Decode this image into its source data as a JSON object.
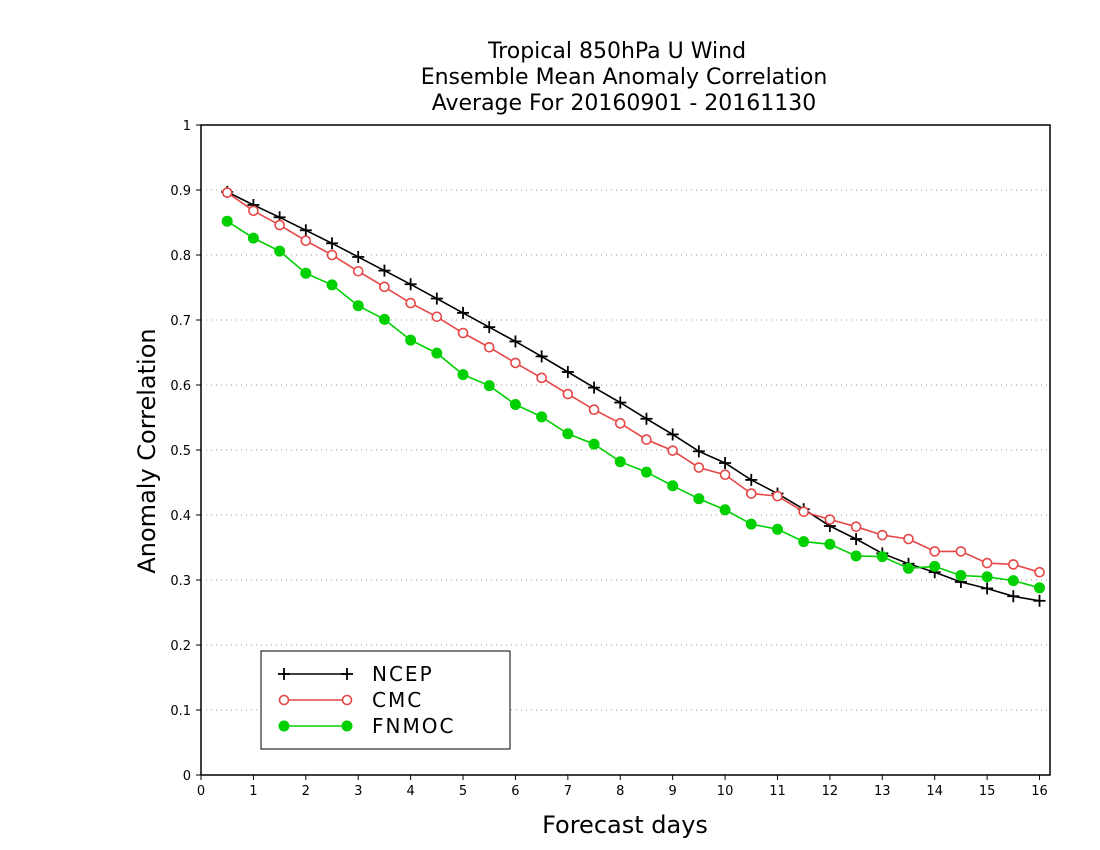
{
  "chart_data": {
    "type": "line",
    "title_lines": [
      "Tropical 850hPa U Wind",
      "Ensemble Mean Anomaly Correlation",
      "Average For 20160901 - 20161130"
    ],
    "xlabel": "Forecast days",
    "ylabel": "Anomaly Correlation",
    "xlim": [
      0,
      16.2
    ],
    "ylim": [
      0,
      1
    ],
    "x_ticks": [
      "0",
      "1",
      "2",
      "3",
      "4",
      "5",
      "6",
      "7",
      "8",
      "9",
      "10",
      "11",
      "12",
      "13",
      "14",
      "15",
      "16"
    ],
    "y_ticks": [
      "0",
      "0.1",
      "0.2",
      "0.3",
      "0.4",
      "0.5",
      "0.6",
      "0.7",
      "0.8",
      "0.9",
      "1"
    ],
    "grid": true,
    "legend_position": "bottom-left",
    "x": [
      0.5,
      1,
      1.5,
      2,
      2.5,
      3,
      3.5,
      4,
      4.5,
      5,
      5.5,
      6,
      6.5,
      7,
      7.5,
      8,
      8.5,
      9,
      9.5,
      10,
      10.5,
      11,
      11.5,
      12,
      12.5,
      13,
      13.5,
      14,
      14.5,
      15,
      15.5,
      16
    ],
    "series": [
      {
        "name": "NCEP",
        "color": "#000000",
        "marker": "plus",
        "values": [
          0.897,
          0.877,
          0.858,
          0.838,
          0.818,
          0.797,
          0.776,
          0.755,
          0.733,
          0.711,
          0.689,
          0.667,
          0.644,
          0.62,
          0.596,
          0.573,
          0.548,
          0.524,
          0.498,
          0.48,
          0.454,
          0.433,
          0.409,
          0.383,
          0.363,
          0.341,
          0.325,
          0.312,
          0.297,
          0.287,
          0.275,
          0.268
        ]
      },
      {
        "name": "CMC",
        "color": "#e64646",
        "marker": "open-circle",
        "values": [
          0.896,
          0.868,
          0.846,
          0.822,
          0.8,
          0.775,
          0.751,
          0.726,
          0.705,
          0.68,
          0.658,
          0.634,
          0.611,
          0.586,
          0.562,
          0.541,
          0.516,
          0.499,
          0.473,
          0.462,
          0.433,
          0.429,
          0.405,
          0.393,
          0.382,
          0.369,
          0.363,
          0.344,
          0.344,
          0.326,
          0.324,
          0.312
        ]
      },
      {
        "name": "FNMOC",
        "color": "#00d000",
        "marker": "filled-circle",
        "values": [
          0.852,
          0.826,
          0.806,
          0.772,
          0.754,
          0.722,
          0.701,
          0.669,
          0.649,
          0.616,
          0.599,
          0.57,
          0.551,
          0.525,
          0.509,
          0.482,
          0.466,
          0.445,
          0.425,
          0.408,
          0.386,
          0.378,
          0.359,
          0.355,
          0.337,
          0.336,
          0.318,
          0.321,
          0.307,
          0.305,
          0.299,
          0.288
        ]
      }
    ]
  }
}
